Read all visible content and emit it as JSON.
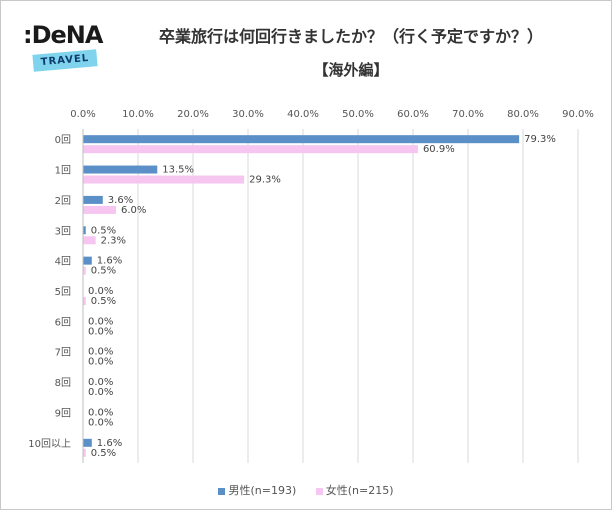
{
  "logo": {
    "text": ":DeNA",
    "badge": "TRAVEL"
  },
  "chart_data": {
    "type": "bar",
    "orientation": "horizontal",
    "title": "卒業旅行は何回行きましたか？（行く予定ですか？）",
    "subtitle": "【海外編】",
    "categories": [
      "0回",
      "1回",
      "2回",
      "3回",
      "4回",
      "5回",
      "6回",
      "7回",
      "8回",
      "9回",
      "10回以上"
    ],
    "xlim": [
      0,
      90
    ],
    "xticks": [
      "0.0%",
      "10.0%",
      "20.0%",
      "30.0%",
      "40.0%",
      "50.0%",
      "60.0%",
      "70.0%",
      "80.0%",
      "90.0%"
    ],
    "grid": true,
    "legend_position": "bottom",
    "series": [
      {
        "name": "男性(n=193)",
        "color": "#5b8fc7",
        "values": [
          79.3,
          13.5,
          3.6,
          0.5,
          1.6,
          0.0,
          0.0,
          0.0,
          0.0,
          0.0,
          1.6
        ],
        "labels": [
          "79.3%",
          "13.5%",
          "3.6%",
          "0.5%",
          "1.6%",
          "0.0%",
          "0.0%",
          "0.0%",
          "0.0%",
          "0.0%",
          "1.6%"
        ]
      },
      {
        "name": "女性(n=215)",
        "color": "#f6c6f0",
        "values": [
          60.9,
          29.3,
          6.0,
          2.3,
          0.5,
          0.5,
          0.0,
          0.0,
          0.0,
          0.0,
          0.5
        ],
        "labels": [
          "60.9%",
          "29.3%",
          "6.0%",
          "2.3%",
          "0.5%",
          "0.5%",
          "0.0%",
          "0.0%",
          "0.0%",
          "0.0%",
          "0.5%"
        ]
      }
    ]
  }
}
